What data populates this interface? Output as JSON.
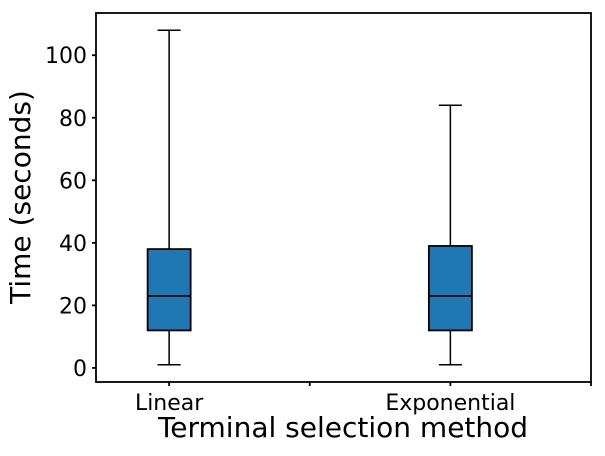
{
  "chart_data": {
    "type": "boxplot",
    "title": "",
    "xlabel": "Terminal selection method",
    "ylabel": "Time (seconds)",
    "categories": [
      "Linear",
      "Exponential"
    ],
    "series": [
      {
        "name": "Linear",
        "position": 1,
        "whisker_low": 1,
        "q1": 12,
        "median": 23,
        "q3": 38,
        "whisker_high": 108
      },
      {
        "name": "Exponential",
        "position": 2,
        "whisker_low": 1,
        "q1": 12,
        "median": 23,
        "q3": 39,
        "whisker_high": 84
      }
    ],
    "xlim": [
      0.74,
      2.5
    ],
    "ylim": [
      -4.5,
      113.5
    ],
    "yticks": [
      0,
      20,
      40,
      60,
      80,
      100
    ],
    "xticks": [
      {
        "pos": 1,
        "label": "Linear"
      },
      {
        "pos": 1.5,
        "label": ""
      },
      {
        "pos": 2,
        "label": "Exponential"
      },
      {
        "pos": 2.5,
        "label": ""
      }
    ],
    "grid": false,
    "legend": null,
    "box_width": 0.153,
    "cap_width": 0.082,
    "colors": {
      "box_fill": "#1f77b4",
      "line": "#000000",
      "background": "#ffffff"
    }
  }
}
